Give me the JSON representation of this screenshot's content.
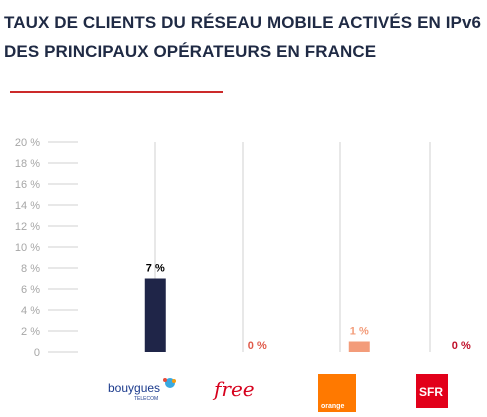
{
  "title_line1": "TAUX DE CLIENTS DU RÉSEAU MOBILE ACTIVÉS EN IPv6",
  "title_line2": "DES PRINCIPAUX OPÉRATEURS EN FRANCE",
  "colors": {
    "accent_rule": "#cc2a2a",
    "title": "#1f2a44",
    "grid": "#d0d0d0",
    "tick": "#a6a6a6"
  },
  "chart_data": {
    "type": "bar",
    "categories": [
      "Bouygues Telecom",
      "Free",
      "Orange",
      "SFR"
    ],
    "values": [
      7,
      0,
      1,
      0
    ],
    "data_labels": [
      "7 %",
      "0 %",
      "1 %",
      "0 %"
    ],
    "bar_colors": [
      "#1f2548",
      "#e05a4a",
      "#f39c7a",
      "#d32020"
    ],
    "label_colors": [
      "#000000",
      "#e05a4a",
      "#f39c7a",
      "#c0102a"
    ],
    "yticks": [
      "0",
      "2 %",
      "4 %",
      "6 %",
      "8 %",
      "10 %",
      "12 %",
      "14 %",
      "16 %",
      "18 %",
      "20 %"
    ],
    "ylim": [
      0,
      20
    ],
    "grid": true
  },
  "logos": {
    "bouygues": {
      "name": "bouygues",
      "sub": "TELECOM"
    },
    "free": {
      "name": "free"
    },
    "orange": {
      "name": "orange"
    },
    "sfr": {
      "name": "SFR"
    }
  }
}
